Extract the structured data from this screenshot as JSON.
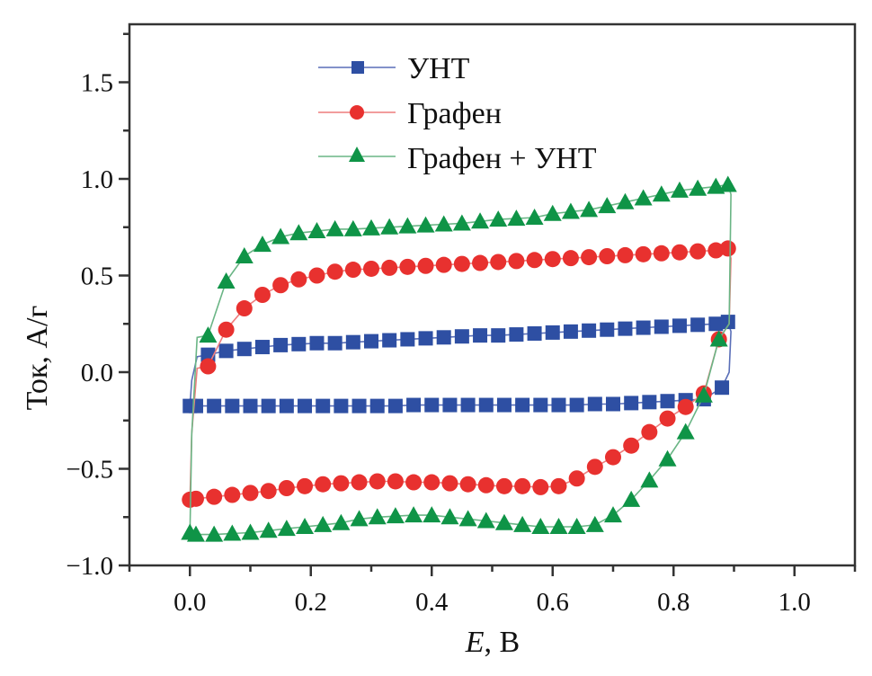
{
  "chart_data": {
    "type": "line",
    "title": "",
    "xlabel_italic": "E",
    "xlabel_rest": ", В",
    "ylabel": "Ток, А/г",
    "xlim": [
      -0.1,
      1.1
    ],
    "ylim": [
      -1.0,
      1.8
    ],
    "xticks": [
      0.0,
      0.2,
      0.4,
      0.6,
      0.8,
      1.0
    ],
    "xtick_labels": [
      "0.0",
      "0.2",
      "0.4",
      "0.6",
      "0.8",
      "1.0"
    ],
    "xminor": [
      -0.1,
      0.1,
      0.3,
      0.5,
      0.7,
      0.9,
      1.1
    ],
    "yticks": [
      -1.0,
      -0.5,
      0.0,
      0.5,
      1.0,
      1.5
    ],
    "ytick_labels": [
      "−1.0",
      "−0.5",
      "0.0",
      "0.5",
      "1.0",
      "1.5"
    ],
    "yminor": [
      -0.75,
      -0.25,
      0.25,
      0.75,
      1.25,
      1.75
    ],
    "grid": false,
    "legend_position": "top-center",
    "series": [
      {
        "name": "УНТ",
        "color": "#2e4fa3",
        "line_color": "#5a6fb8",
        "marker": "square",
        "forward": {
          "x": [
            0.03,
            0.06,
            0.09,
            0.12,
            0.15,
            0.18,
            0.21,
            0.24,
            0.27,
            0.3,
            0.33,
            0.36,
            0.39,
            0.42,
            0.45,
            0.48,
            0.51,
            0.54,
            0.57,
            0.6,
            0.63,
            0.66,
            0.69,
            0.72,
            0.75,
            0.78,
            0.81,
            0.84,
            0.87,
            0.89
          ],
          "y": [
            0.09,
            0.11,
            0.12,
            0.13,
            0.14,
            0.145,
            0.15,
            0.15,
            0.155,
            0.16,
            0.165,
            0.17,
            0.175,
            0.18,
            0.185,
            0.19,
            0.19,
            0.195,
            0.2,
            0.205,
            0.21,
            0.215,
            0.22,
            0.225,
            0.23,
            0.235,
            0.24,
            0.245,
            0.25,
            0.26
          ]
        },
        "reverse": {
          "x": [
            0.88,
            0.85,
            0.82,
            0.79,
            0.76,
            0.73,
            0.7,
            0.67,
            0.64,
            0.61,
            0.58,
            0.55,
            0.52,
            0.49,
            0.46,
            0.43,
            0.4,
            0.37,
            0.34,
            0.31,
            0.28,
            0.25,
            0.22,
            0.19,
            0.16,
            0.13,
            0.1,
            0.07,
            0.04,
            0.01,
            0.0
          ],
          "y": [
            -0.08,
            -0.14,
            -0.145,
            -0.15,
            -0.155,
            -0.16,
            -0.165,
            -0.165,
            -0.17,
            -0.17,
            -0.17,
            -0.17,
            -0.17,
            -0.17,
            -0.17,
            -0.17,
            -0.17,
            -0.17,
            -0.175,
            -0.175,
            -0.175,
            -0.175,
            -0.175,
            -0.175,
            -0.175,
            -0.175,
            -0.175,
            -0.175,
            -0.175,
            -0.175,
            -0.175
          ]
        }
      },
      {
        "name": "Графен",
        "color": "#e8312f",
        "line_color": "#ee7d7d",
        "marker": "circle",
        "forward": {
          "x": [
            0.03,
            0.06,
            0.09,
            0.12,
            0.15,
            0.18,
            0.21,
            0.24,
            0.27,
            0.3,
            0.33,
            0.36,
            0.39,
            0.42,
            0.45,
            0.48,
            0.51,
            0.54,
            0.57,
            0.6,
            0.63,
            0.66,
            0.69,
            0.72,
            0.75,
            0.78,
            0.81,
            0.84,
            0.87,
            0.89
          ],
          "y": [
            0.03,
            0.22,
            0.33,
            0.4,
            0.45,
            0.48,
            0.5,
            0.52,
            0.53,
            0.535,
            0.54,
            0.545,
            0.55,
            0.555,
            0.56,
            0.565,
            0.57,
            0.575,
            0.58,
            0.585,
            0.59,
            0.595,
            0.6,
            0.605,
            0.61,
            0.615,
            0.62,
            0.625,
            0.63,
            0.64
          ]
        },
        "reverse": {
          "x": [
            0.875,
            0.85,
            0.82,
            0.79,
            0.76,
            0.73,
            0.7,
            0.67,
            0.64,
            0.61,
            0.58,
            0.55,
            0.52,
            0.49,
            0.46,
            0.43,
            0.4,
            0.37,
            0.34,
            0.31,
            0.28,
            0.25,
            0.22,
            0.19,
            0.16,
            0.13,
            0.1,
            0.07,
            0.04,
            0.01,
            0.0
          ],
          "y": [
            0.17,
            -0.11,
            -0.18,
            -0.24,
            -0.31,
            -0.38,
            -0.44,
            -0.49,
            -0.55,
            -0.59,
            -0.595,
            -0.59,
            -0.59,
            -0.585,
            -0.58,
            -0.575,
            -0.57,
            -0.57,
            -0.565,
            -0.565,
            -0.57,
            -0.575,
            -0.58,
            -0.59,
            -0.6,
            -0.615,
            -0.625,
            -0.635,
            -0.645,
            -0.655,
            -0.66
          ]
        }
      },
      {
        "name": "Графен + УНТ",
        "color": "#0f9447",
        "line_color": "#6ab585",
        "marker": "triangle",
        "forward": {
          "x": [
            0.03,
            0.06,
            0.09,
            0.12,
            0.15,
            0.18,
            0.21,
            0.24,
            0.27,
            0.3,
            0.33,
            0.36,
            0.39,
            0.42,
            0.45,
            0.48,
            0.51,
            0.54,
            0.57,
            0.6,
            0.63,
            0.66,
            0.69,
            0.72,
            0.75,
            0.78,
            0.81,
            0.84,
            0.87,
            0.89
          ],
          "y": [
            0.19,
            0.47,
            0.6,
            0.66,
            0.7,
            0.72,
            0.73,
            0.74,
            0.74,
            0.745,
            0.75,
            0.755,
            0.76,
            0.765,
            0.77,
            0.78,
            0.79,
            0.795,
            0.8,
            0.82,
            0.83,
            0.84,
            0.86,
            0.88,
            0.9,
            0.92,
            0.94,
            0.95,
            0.96,
            0.97
          ]
        },
        "reverse": {
          "x": [
            0.875,
            0.85,
            0.82,
            0.79,
            0.76,
            0.73,
            0.7,
            0.67,
            0.64,
            0.61,
            0.58,
            0.55,
            0.52,
            0.49,
            0.46,
            0.43,
            0.4,
            0.37,
            0.34,
            0.31,
            0.28,
            0.25,
            0.22,
            0.19,
            0.16,
            0.13,
            0.1,
            0.07,
            0.04,
            0.01,
            0.0
          ],
          "y": [
            0.17,
            -0.12,
            -0.31,
            -0.45,
            -0.56,
            -0.66,
            -0.74,
            -0.79,
            -0.8,
            -0.8,
            -0.8,
            -0.79,
            -0.78,
            -0.77,
            -0.76,
            -0.75,
            -0.74,
            -0.74,
            -0.745,
            -0.75,
            -0.76,
            -0.78,
            -0.79,
            -0.8,
            -0.81,
            -0.82,
            -0.83,
            -0.835,
            -0.84,
            -0.84,
            -0.83
          ]
        }
      }
    ]
  }
}
